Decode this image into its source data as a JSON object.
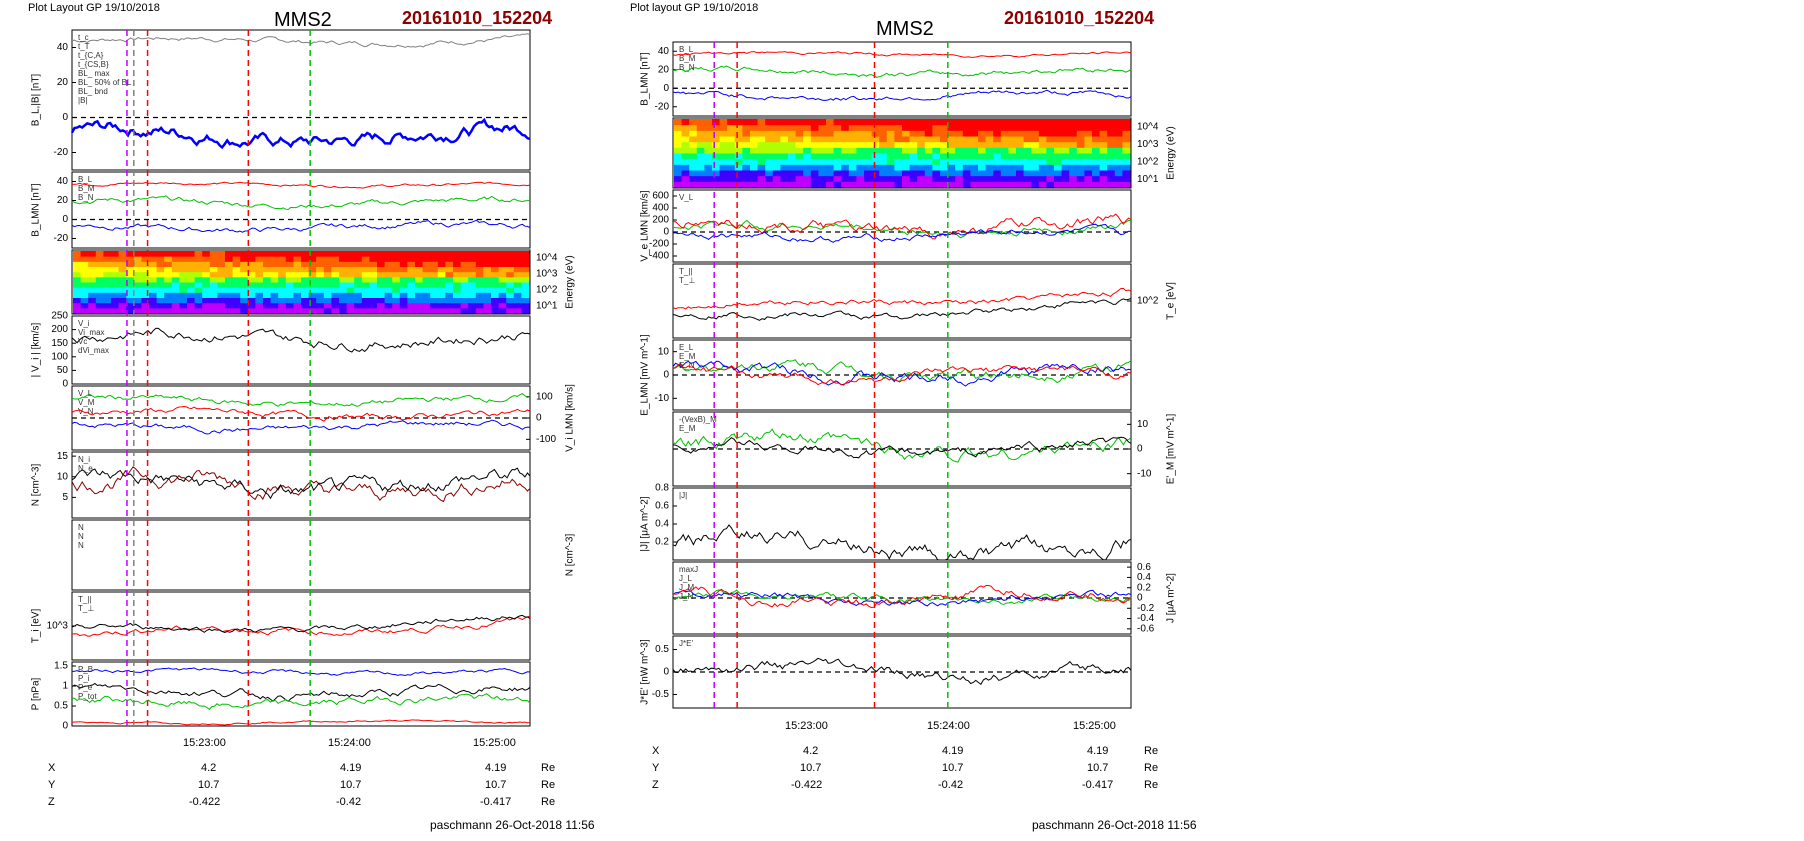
{
  "left": {
    "layout_label": "Plot Layout GP 19/10/2018",
    "spacecraft": "MMS2",
    "event_id": "20161010_152204",
    "footer": "paschmann 26-Oct-2018 11:56",
    "time_ticks": [
      "15:23:00",
      "15:24:00",
      "15:25:00"
    ],
    "ephemeris": {
      "rows": [
        {
          "label": "X",
          "values": [
            "4.2",
            "4.19",
            "4.19"
          ],
          "unit": "Re"
        },
        {
          "label": "Y",
          "values": [
            "10.7",
            "10.7",
            "10.7"
          ],
          "unit": "Re"
        },
        {
          "label": "Z",
          "values": [
            "-0.422",
            "-0.42",
            "-0.417"
          ],
          "unit": "Re"
        }
      ]
    }
  },
  "right": {
    "layout_label": "Plot layout GP 19/10/2018",
    "spacecraft": "MMS2",
    "event_id": "20161010_152204",
    "footer": "paschmann 26-Oct-2018 11:56",
    "time_ticks": [
      "15:23:00",
      "15:24:00",
      "15:25:00"
    ],
    "ephemeris": {
      "rows": [
        {
          "label": "X",
          "values": [
            "4.2",
            "4.19",
            "4.19"
          ],
          "unit": "Re"
        },
        {
          "label": "Y",
          "values": [
            "10.7",
            "10.7",
            "10.7"
          ],
          "unit": "Re"
        },
        {
          "label": "Z",
          "values": [
            "-0.422",
            "-0.42",
            "-0.417"
          ],
          "unit": "Re"
        }
      ]
    }
  },
  "colors": {
    "red": "#ff0000",
    "green": "#00c000",
    "blue": "#0000ff",
    "black": "#000000",
    "gray": "#808080",
    "magenta": "#c000ff",
    "dkred": "#8b0000"
  },
  "chart_data": [
    {
      "id": "L1",
      "type": "line",
      "ylabel": "B_L,|B| [nT]",
      "ylim": [
        -30,
        50
      ],
      "yticks": [
        -20,
        0,
        20,
        40
      ],
      "legend": [
        "t_c",
        "t_T",
        "t_{C,A}",
        "t_{CS,B}",
        "BL_ max",
        "BL_ 50% of BL",
        "BL_ bnd",
        "|B|"
      ],
      "series": [
        {
          "name": "|B|",
          "color": "gray",
          "base": 44,
          "amp": 3
        },
        {
          "name": "BL",
          "color": "blue",
          "base": -10,
          "amp": 8,
          "width": 2.5
        }
      ]
    },
    {
      "id": "L2",
      "type": "line",
      "ylabel": "B_LMN [nT]",
      "ylim": [
        -30,
        50
      ],
      "yticks": [
        -20,
        0,
        20,
        40
      ],
      "legend": [
        "B_L",
        "B_M",
        "B_N"
      ],
      "series": [
        {
          "name": "B_L",
          "color": "red",
          "base": 37,
          "amp": 3
        },
        {
          "name": "B_M",
          "color": "green",
          "base": 18,
          "amp": 6
        },
        {
          "name": "B_N",
          "color": "blue",
          "base": -8,
          "amp": 6
        }
      ]
    },
    {
      "id": "L3",
      "type": "heatmap",
      "ylabel": "Energy (eV)",
      "yticks": [
        "10^4",
        "10^3",
        "10^2",
        "10^1"
      ]
    },
    {
      "id": "L4",
      "type": "line",
      "ylabel": "| V_i | [km/s]",
      "ylim": [
        0,
        250
      ],
      "yticks": [
        0,
        50,
        100,
        150,
        200,
        250
      ],
      "legend": [
        "V_i",
        "Vi_max",
        "Vc",
        "dVi_max"
      ],
      "series": [
        {
          "name": "|V_i|",
          "color": "black",
          "base": 170,
          "amp": 40
        }
      ]
    },
    {
      "id": "L5",
      "type": "line",
      "ylabel": "V_i LMN [km/s]",
      "ylim": [
        -150,
        150
      ],
      "yticks": [
        100,
        0,
        -100
      ],
      "legend": [
        "V_L",
        "V_M",
        "V_N"
      ],
      "series": [
        {
          "name": "V_L",
          "color": "red",
          "base": 20,
          "amp": 30
        },
        {
          "name": "V_M",
          "color": "green",
          "base": 80,
          "amp": 30
        },
        {
          "name": "V_N",
          "color": "blue",
          "base": -40,
          "amp": 30
        }
      ]
    },
    {
      "id": "L6",
      "type": "line",
      "ylabel": "N [cm^-3]",
      "ylim": [
        0,
        16
      ],
      "yticks": [
        5,
        10,
        15
      ],
      "legend": [
        "N_i",
        "N_e"
      ],
      "series": [
        {
          "name": "N_i",
          "color": "dkred",
          "base": 8,
          "amp": 4
        },
        {
          "name": "N_e",
          "color": "black",
          "base": 8,
          "amp": 4
        }
      ]
    },
    {
      "id": "L7",
      "type": "line",
      "ylabel": "N [cm^-3]",
      "legend": [
        "N",
        "N",
        "N"
      ],
      "series": []
    },
    {
      "id": "L8",
      "type": "line",
      "ylabel": "T_i [eV]",
      "yticks": [
        "10^3"
      ],
      "legend": [
        "T_||",
        "T_⊥"
      ],
      "series": [
        {
          "name": "T_||",
          "color": "red",
          "base": 0.45,
          "amp": 0.3
        },
        {
          "name": "T_⊥",
          "color": "black",
          "base": 0.5,
          "amp": 0.3
        }
      ]
    },
    {
      "id": "L9",
      "type": "line",
      "ylabel": "P [nPa]",
      "ylim": [
        0,
        1.6
      ],
      "yticks": [
        0.0,
        0.5,
        1.0,
        1.5
      ],
      "legend": [
        "P_B",
        "P_i",
        "P_e",
        "P_tot"
      ],
      "series": [
        {
          "name": "P_tot",
          "color": "blue",
          "base": 1.35,
          "amp": 0.1
        },
        {
          "name": "P_i",
          "color": "black",
          "base": 0.85,
          "amp": 0.2
        },
        {
          "name": "P_B",
          "color": "green",
          "base": 0.6,
          "amp": 0.2
        },
        {
          "name": "P_e",
          "color": "red",
          "base": 0.1,
          "amp": 0.05
        }
      ]
    },
    {
      "id": "R1",
      "type": "line",
      "ylabel": "B_LMN [nT]",
      "ylim": [
        -30,
        50
      ],
      "yticks": [
        -20,
        0,
        20,
        40
      ],
      "legend": [
        "B_L",
        "B_M",
        "B_N"
      ],
      "series": [
        {
          "name": "B_L",
          "color": "red",
          "base": 37,
          "amp": 3
        },
        {
          "name": "B_M",
          "color": "green",
          "base": 18,
          "amp": 6
        },
        {
          "name": "B_N",
          "color": "blue",
          "base": -8,
          "amp": 6
        }
      ]
    },
    {
      "id": "R2",
      "type": "heatmap",
      "ylabel": "Energy (eV)",
      "yticks": [
        "10^4",
        "10^3",
        "10^2",
        "10^1"
      ]
    },
    {
      "id": "R3",
      "type": "line",
      "ylabel": "V_e LMN [km/s]",
      "ylim": [
        -500,
        700
      ],
      "yticks": [
        -400,
        -200,
        0,
        200,
        400,
        600
      ],
      "legend": [
        "V_L"
      ],
      "series": [
        {
          "name": "V_L",
          "color": "green",
          "base": 50,
          "amp": 150
        },
        {
          "name": "V_M",
          "color": "red",
          "base": 80,
          "amp": 200
        },
        {
          "name": "V_N",
          "color": "blue",
          "base": -50,
          "amp": 120
        }
      ]
    },
    {
      "id": "R4",
      "type": "line",
      "ylabel": "T_e [eV]",
      "yticks": [
        "10^2"
      ],
      "legend": [
        "T_||",
        "T_⊥"
      ],
      "series": [
        {
          "name": "T_||",
          "color": "red",
          "base": 0.5,
          "amp": 0.3
        },
        {
          "name": "T_⊥",
          "color": "black",
          "base": 0.35,
          "amp": 0.3
        }
      ]
    },
    {
      "id": "R5",
      "type": "line",
      "ylabel": "E_LMN [mV m^-1]",
      "ylim": [
        -15,
        15
      ],
      "yticks": [
        -10,
        0,
        10
      ],
      "legend": [
        "E_L",
        "E_M",
        "E_N"
      ],
      "series": [
        {
          "name": "E_M",
          "color": "green",
          "base": 2,
          "amp": 5
        },
        {
          "name": "E_N",
          "color": "blue",
          "base": 1,
          "amp": 5
        },
        {
          "name": "E_L",
          "color": "red",
          "base": 0,
          "amp": 4
        }
      ]
    },
    {
      "id": "R6",
      "type": "line",
      "ylabel": "E'_M [mV m^-1]",
      "ylim": [
        -15,
        15
      ],
      "yticks": [
        -10,
        0,
        10
      ],
      "legend": [
        "-(VexB)_M",
        "E_M"
      ],
      "series": [
        {
          "name": "E_M",
          "color": "green",
          "base": 1,
          "amp": 6
        },
        {
          "name": "-(VexB)_M",
          "color": "black",
          "base": 0,
          "amp": 4
        }
      ]
    },
    {
      "id": "R7",
      "type": "line",
      "ylabel": "|J| [μA m^-2]",
      "ylim": [
        0,
        0.8
      ],
      "yticks": [
        0.2,
        0.4,
        0.6,
        0.8
      ],
      "legend": [
        "|J|"
      ],
      "series": [
        {
          "name": "|J|",
          "color": "black",
          "base": 0.15,
          "amp": 0.2
        }
      ]
    },
    {
      "id": "R8",
      "type": "line",
      "ylabel": "J [μA m^-2]",
      "ylim": [
        -0.7,
        0.7
      ],
      "yticks": [
        -0.6,
        -0.4,
        -0.2,
        0.0,
        0.2,
        0.4,
        0.6
      ],
      "legend": [
        "maxJ",
        "J_L",
        "J_M",
        "J_N"
      ],
      "series": [
        {
          "name": "J_M",
          "color": "green",
          "base": 0,
          "amp": 0.15
        },
        {
          "name": "J_N",
          "color": "blue",
          "base": 0,
          "amp": 0.15
        },
        {
          "name": "J_L",
          "color": "red",
          "base": 0,
          "amp": 0.2
        }
      ]
    },
    {
      "id": "R9",
      "type": "line",
      "ylabel": "J*E' [nW m^-3]",
      "ylim": [
        -0.8,
        0.8
      ],
      "yticks": [
        -0.5,
        0.0,
        0.5
      ],
      "legend": [
        "J*E'"
      ],
      "series": [
        {
          "name": "J*E'",
          "color": "black",
          "base": 0,
          "amp": 0.25
        }
      ]
    }
  ]
}
